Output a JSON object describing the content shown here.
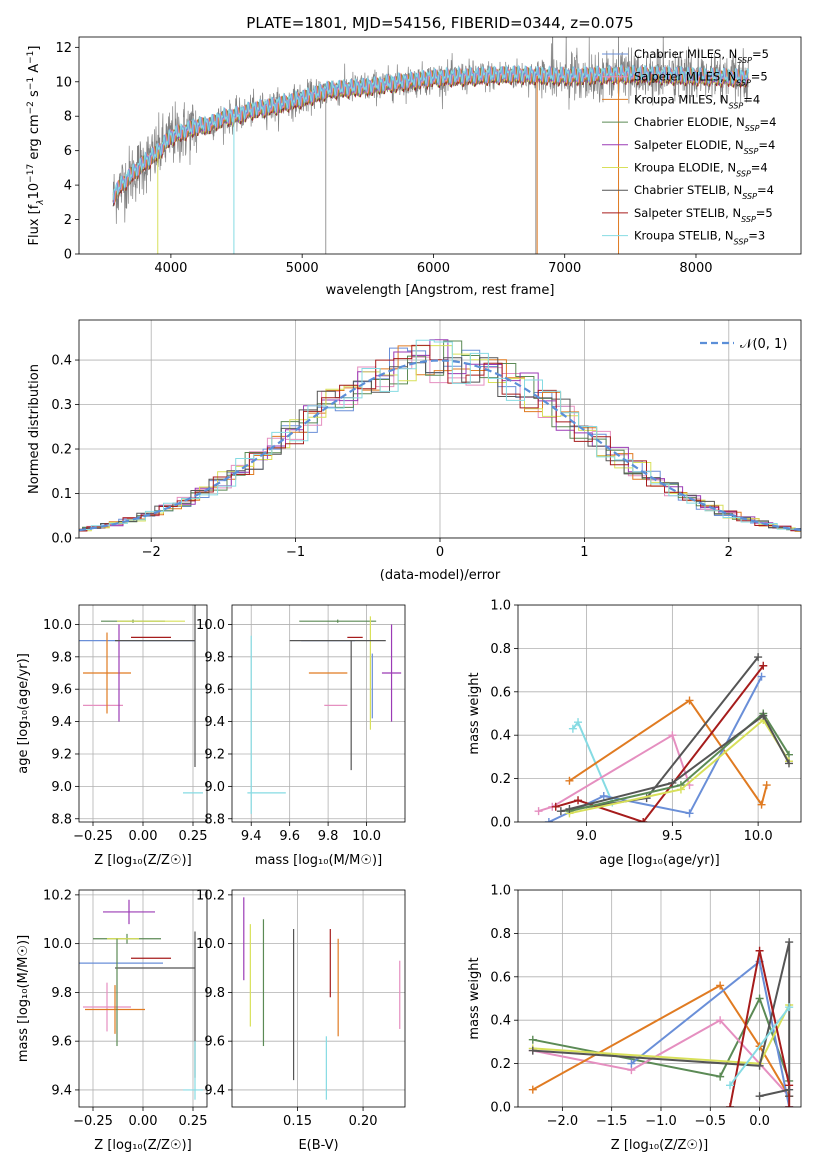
{
  "figure": {
    "title": "PLATE=1801, MJD=54156, FIBERID=0344, z=0.075"
  },
  "colors": {
    "chabrier_miles": "#6a8fd8",
    "salpeter_miles": "#e58fc0",
    "kroupa_miles": "#e07b22",
    "chabrier_elodie": "#5b8a55",
    "salpeter_elodie": "#9b3bb5",
    "kroupa_elodie": "#d8e05a",
    "chabrier_stelib": "#555555",
    "salpeter_stelib": "#a61c1c",
    "kroupa_stelib": "#86dbe3",
    "data": "#808080",
    "normal": "#5b8fd8"
  },
  "chart_data": [
    {
      "type": "line",
      "panel": "spectrum",
      "xlabel": "wavelength [Angstrom, rest frame]",
      "ylabel_parts": [
        "Flux [f",
        "λ",
        "10",
        "−17",
        " erg cm",
        "−2",
        " s",
        "−1",
        " A",
        "−1",
        "]"
      ],
      "xlim": [
        3300,
        8800
      ],
      "ylim": [
        0,
        12.6
      ],
      "xticks": [
        4000,
        5000,
        6000,
        7000,
        8000
      ],
      "yticks": [
        0,
        2,
        4,
        6,
        8,
        10,
        12
      ],
      "legend": [
        {
          "label": "Chabrier MILES, N",
          "sub": "SSP",
          "suffix": "=5",
          "color": "chabrier_miles"
        },
        {
          "label": "Salpeter MILES, N",
          "sub": "SSP",
          "suffix": "=5",
          "color": "salpeter_miles"
        },
        {
          "label": "Kroupa MILES, N",
          "sub": "SSP",
          "suffix": "=4",
          "color": "kroupa_miles"
        },
        {
          "label": "Chabrier ELODIE, N",
          "sub": "SSP",
          "suffix": "=4",
          "color": "chabrier_elodie"
        },
        {
          "label": "Salpeter ELODIE, N",
          "sub": "SSP",
          "suffix": "=4",
          "color": "salpeter_elodie"
        },
        {
          "label": "Kroupa ELODIE, N",
          "sub": "SSP",
          "suffix": "=4",
          "color": "kroupa_elodie"
        },
        {
          "label": "Chabrier STELIB, N",
          "sub": "SSP",
          "suffix": "=4",
          "color": "chabrier_stelib"
        },
        {
          "label": "Salpeter STELIB, N",
          "sub": "SSP",
          "suffix": "=5",
          "color": "salpeter_stelib"
        },
        {
          "label": "Kroupa STELIB, N",
          "sub": "SSP",
          "suffix": "=3",
          "color": "kroupa_stelib"
        }
      ],
      "continuum": {
        "x": [
          3560,
          3600,
          3700,
          3800,
          3900,
          4000,
          4100,
          4200,
          4300,
          4400,
          4500,
          4600,
          4800,
          5000,
          5200,
          5500,
          5800,
          6000,
          6300,
          6600,
          7000,
          7400,
          7600,
          8000,
          8400
        ],
        "y": [
          3.3,
          3.8,
          4.6,
          5.3,
          5.9,
          6.8,
          7.1,
          7.4,
          7.5,
          7.9,
          8.0,
          8.3,
          8.6,
          9.0,
          9.5,
          9.7,
          10.0,
          10.2,
          10.3,
          10.4,
          10.3,
          10.4,
          10.4,
          10.3,
          10.2
        ]
      }
    },
    {
      "type": "histogram",
      "panel": "residuals",
      "xlabel": "(data-model)/error",
      "ylabel": "Normed distribution",
      "xlim": [
        -2.5,
        2.5
      ],
      "ylim": [
        0,
        0.49
      ],
      "xticks": [
        -2,
        -1,
        0,
        1,
        2
      ],
      "yticks": [
        0.0,
        0.1,
        0.2,
        0.3,
        0.4
      ],
      "xtick_labels": [
        "−2",
        "−1",
        "0",
        "1",
        "2"
      ],
      "ytick_labels": [
        "0.0",
        "0.1",
        "0.2",
        "0.3",
        "0.4"
      ],
      "legend": [
        {
          "label": "𝒩(0, 1)",
          "color": "normal",
          "style": "dashed"
        }
      ],
      "bin_width": 0.125
    },
    {
      "type": "scatter",
      "panel": "age-vs-metallicity",
      "xlabel": "Z [log₁₀(Z/Z☉)]",
      "ylabel": "age  [log₁₀(age/yr)]",
      "xlim": [
        -0.32,
        0.32
      ],
      "ylim": [
        8.78,
        10.12
      ],
      "xticks": [
        -0.25,
        0,
        0.25
      ],
      "xtick_labels": [
        "−0.25",
        "0.00",
        "0.25"
      ],
      "yticks": [
        8.8,
        9.0,
        9.2,
        9.4,
        9.6,
        9.8,
        10.0
      ],
      "points": [
        {
          "color": "chabrier_miles",
          "x": -0.04,
          "xe": 0.3,
          "y": 9.9,
          "ye": 0.0
        },
        {
          "color": "salpeter_miles",
          "x": -0.2,
          "xe": 0.1,
          "y": 9.5,
          "ye": 0.0
        },
        {
          "color": "kroupa_miles",
          "x": -0.18,
          "xe": 0.12,
          "y": 9.7,
          "ye": 0.25
        },
        {
          "color": "chabrier_elodie",
          "x": -0.05,
          "xe": 0.16,
          "y": 10.02,
          "ye": 0.01
        },
        {
          "color": "kroupa_elodie",
          "x": 0.04,
          "xe": 0.17,
          "y": 10.02,
          "ye": 0.0
        },
        {
          "color": "salpeter_elodie",
          "x": -0.12,
          "xe": 0.0,
          "y": 9.7,
          "ye": 0.3
        },
        {
          "color": "chabrier_stelib",
          "x": 0.06,
          "xe": 0.2,
          "y": 9.9,
          "ye": 0.0
        },
        {
          "color": "salpeter_stelib",
          "x": 0.04,
          "xe": 0.1,
          "y": 9.92,
          "ye": 0.0
        },
        {
          "color": "chabrier_stelib",
          "x": 0.26,
          "xe": 0.0,
          "y": 9.62,
          "ye": 0.5
        },
        {
          "color": "kroupa_stelib",
          "x": 0.25,
          "xe": 0.05,
          "y": 8.96,
          "ye": 0.0
        }
      ]
    },
    {
      "type": "scatter",
      "panel": "age-vs-mass",
      "xlabel": "mass [log₁₀(M/M☉)]",
      "xlim": [
        9.3,
        10.2
      ],
      "ylim": [
        8.78,
        10.12
      ],
      "xticks": [
        9.4,
        9.6,
        9.8,
        10.0
      ],
      "yticks": [
        8.8,
        9.0,
        9.2,
        9.4,
        9.6,
        9.8,
        10.0
      ],
      "points": [
        {
          "color": "kroupa_stelib",
          "x": 9.48,
          "xe": 0.1,
          "y": 8.96,
          "ye": 0.0
        },
        {
          "color": "kroupa_stelib",
          "x": 9.4,
          "xe": 0.0,
          "y": 9.38,
          "ye": 0.55
        },
        {
          "color": "salpeter_miles",
          "x": 9.84,
          "xe": 0.06,
          "y": 9.5,
          "ye": 0.0
        },
        {
          "color": "kroupa_miles",
          "x": 9.8,
          "xe": 0.1,
          "y": 9.7,
          "ye": 0.0
        },
        {
          "color": "chabrier_miles",
          "x": 9.8,
          "xe": 0.14,
          "y": 9.9,
          "ye": 0.0
        },
        {
          "color": "chabrier_elodie",
          "x": 9.85,
          "xe": 0.2,
          "y": 10.02,
          "ye": 0.01
        },
        {
          "color": "kroupa_elodie",
          "x": 10.02,
          "xe": 0.0,
          "y": 9.7,
          "ye": 0.35
        },
        {
          "color": "salpeter_elodie",
          "x": 10.13,
          "xe": 0.05,
          "y": 9.7,
          "ye": 0.3
        },
        {
          "color": "chabrier_stelib",
          "x": 9.92,
          "xe": 0.0,
          "y": 9.5,
          "ye": 0.4
        },
        {
          "color": "salpeter_stelib",
          "x": 9.94,
          "xe": 0.04,
          "y": 9.92,
          "ye": 0.0
        },
        {
          "color": "chabrier_stelib",
          "x": 9.85,
          "xe": 0.25,
          "y": 9.9,
          "ye": 0.0
        },
        {
          "color": "chabrier_miles",
          "x": 10.03,
          "xe": 0.0,
          "y": 9.62,
          "ye": 0.2
        }
      ]
    },
    {
      "type": "line",
      "panel": "mass-weight-vs-age",
      "xlabel": "age  [log₁₀(age/yr)]",
      "ylabel": "mass weight",
      "xlim": [
        8.6,
        10.25
      ],
      "ylim": [
        0,
        1.0
      ],
      "xticks": [
        9.0,
        9.5,
        10.0
      ],
      "yticks": [
        0.0,
        0.2,
        0.4,
        0.6,
        0.8,
        1.0
      ],
      "series": [
        {
          "color": "kroupa_stelib",
          "x": [
            8.92,
            8.95,
            9.15
          ],
          "y": [
            0.43,
            0.46,
            0.09
          ]
        },
        {
          "color": "salpeter_miles",
          "x": [
            8.72,
            8.8,
            9.5,
            9.6
          ],
          "y": [
            0.05,
            0.07,
            0.4,
            0.17
          ]
        },
        {
          "color": "kroupa_miles",
          "x": [
            8.9,
            9.6,
            10.02,
            10.05
          ],
          "y": [
            0.19,
            0.56,
            0.08,
            0.17
          ]
        },
        {
          "color": "chabrier_miles",
          "x": [
            8.78,
            9.1,
            9.6,
            10.02
          ],
          "y": [
            0.0,
            0.12,
            0.04,
            0.67
          ]
        },
        {
          "color": "chabrier_stelib",
          "x": [
            8.85,
            9.35,
            10.0
          ],
          "y": [
            0.05,
            0.11,
            0.76
          ]
        },
        {
          "color": "salpeter_stelib",
          "x": [
            8.82,
            8.95,
            9.33,
            10.03
          ],
          "y": [
            0.07,
            0.1,
            0.0,
            0.72
          ]
        },
        {
          "color": "chabrier_elodie",
          "x": [
            8.9,
            9.55,
            10.03,
            10.18
          ],
          "y": [
            0.05,
            0.17,
            0.5,
            0.31
          ]
        },
        {
          "color": "kroupa_elodie",
          "x": [
            8.9,
            9.55,
            10.03,
            10.18
          ],
          "y": [
            0.04,
            0.15,
            0.47,
            0.28
          ]
        },
        {
          "color": "chabrier_stelib",
          "x": [
            8.9,
            9.5,
            10.03,
            10.18
          ],
          "y": [
            0.06,
            0.18,
            0.49,
            0.27
          ]
        }
      ]
    },
    {
      "type": "scatter",
      "panel": "mass-vs-metallicity",
      "xlabel": "Z [log₁₀(Z/Z☉)]",
      "ylabel": "mass [log₁₀(M/M☉)]",
      "xlim": [
        -0.32,
        0.32
      ],
      "ylim": [
        9.33,
        10.22
      ],
      "xticks": [
        -0.25,
        0,
        0.25
      ],
      "xtick_labels": [
        "−0.25",
        "0.00",
        "0.25"
      ],
      "yticks": [
        9.4,
        9.6,
        9.8,
        10.0,
        10.2
      ],
      "points": [
        {
          "color": "salpeter_elodie",
          "x": -0.07,
          "xe": 0.13,
          "y": 10.13,
          "ye": 0.05
        },
        {
          "color": "chabrier_elodie",
          "x": -0.08,
          "xe": 0.17,
          "y": 10.02,
          "ye": 0.02
        },
        {
          "color": "kroupa_elodie",
          "x": -0.1,
          "xe": 0.08,
          "y": 10.02,
          "ye": 0.0
        },
        {
          "color": "chabrier_miles",
          "x": -0.12,
          "xe": 0.22,
          "y": 9.92,
          "ye": 0.0
        },
        {
          "color": "salpeter_stelib",
          "x": 0.04,
          "xe": 0.1,
          "y": 9.94,
          "ye": 0.0
        },
        {
          "color": "chabrier_stelib",
          "x": 0.06,
          "xe": 0.2,
          "y": 9.9,
          "ye": 0.0
        },
        {
          "color": "salpeter_miles",
          "x": -0.18,
          "xe": 0.12,
          "y": 9.74,
          "ye": 0.1
        },
        {
          "color": "kroupa_miles",
          "x": -0.14,
          "xe": 0.15,
          "y": 9.73,
          "ye": 0.1
        },
        {
          "color": "chabrier_elodie",
          "x": -0.13,
          "xe": 0.0,
          "y": 9.8,
          "ye": 0.22
        },
        {
          "color": "chabrier_stelib",
          "x": 0.26,
          "xe": 0.0,
          "y": 9.75,
          "ye": 0.3
        },
        {
          "color": "kroupa_stelib",
          "x": 0.25,
          "xe": 0.05,
          "y": 9.4,
          "ye": 0.0
        },
        {
          "color": "kroupa_stelib",
          "x": 0.26,
          "xe": 0.0,
          "y": 9.48,
          "ye": 0.12
        }
      ]
    },
    {
      "type": "scatter",
      "panel": "mass-vs-extinction",
      "xlabel": "E(B-V)",
      "xlim": [
        0.1,
        0.232
      ],
      "ylim": [
        9.33,
        10.22
      ],
      "xticks": [
        0.15,
        0.2
      ],
      "xtick_labels": [
        "0.15",
        "0.20"
      ],
      "yticks": [
        9.4,
        9.6,
        9.8,
        10.0,
        10.2
      ],
      "points": [
        {
          "color": "salpeter_elodie",
          "x": 0.109,
          "xe": 0.0,
          "y": 10.02,
          "ye": 0.17
        },
        {
          "color": "kroupa_elodie",
          "x": 0.114,
          "xe": 0.0,
          "y": 9.87,
          "ye": 0.21
        },
        {
          "color": "chabrier_elodie",
          "x": 0.124,
          "xe": 0.0,
          "y": 9.84,
          "ye": 0.26
        },
        {
          "color": "chabrier_stelib",
          "x": 0.147,
          "xe": 0.0,
          "y": 9.75,
          "ye": 0.31
        },
        {
          "color": "kroupa_stelib",
          "x": 0.172,
          "xe": 0.0,
          "y": 9.49,
          "ye": 0.13
        },
        {
          "color": "salpeter_stelib",
          "x": 0.175,
          "xe": 0.0,
          "y": 9.92,
          "ye": 0.14
        },
        {
          "color": "kroupa_miles",
          "x": 0.181,
          "xe": 0.0,
          "y": 9.82,
          "ye": 0.2
        },
        {
          "color": "salpeter_miles",
          "x": 0.228,
          "xe": 0.0,
          "y": 9.79,
          "ye": 0.14
        }
      ]
    },
    {
      "type": "line",
      "panel": "mass-weight-vs-metallicity",
      "xlabel": "Z [log₁₀(Z/Z☉)]",
      "ylabel": "mass weight",
      "xlim": [
        -2.45,
        0.42
      ],
      "ylim": [
        0,
        1.0
      ],
      "xticks": [
        -2.0,
        -1.5,
        -1.0,
        -0.5,
        0.0
      ],
      "xtick_labels": [
        "−2.0",
        "−1.5",
        "−1.0",
        "−0.5",
        "0.0"
      ],
      "yticks": [
        0.0,
        0.2,
        0.4,
        0.6,
        0.8,
        1.0
      ],
      "series": [
        {
          "color": "chabrier_elodie",
          "x": [
            -2.3,
            -0.4,
            0.0,
            0.3
          ],
          "y": [
            0.31,
            0.14,
            0.5,
            0.12
          ]
        },
        {
          "color": "salpeter_miles",
          "x": [
            -2.3,
            -1.3,
            -0.4,
            0.3
          ],
          "y": [
            0.26,
            0.17,
            0.4,
            0.05
          ]
        },
        {
          "color": "kroupa_miles",
          "x": [
            -2.3,
            -0.4,
            0.0,
            0.3
          ],
          "y": [
            0.08,
            0.56,
            0.28,
            0.05
          ]
        },
        {
          "color": "chabrier_miles",
          "x": [
            -1.3,
            0.0,
            0.3
          ],
          "y": [
            0.2,
            0.67,
            0.0
          ]
        },
        {
          "color": "kroupa_elodie",
          "x": [
            -2.3,
            0.0,
            0.3
          ],
          "y": [
            0.27,
            0.2,
            0.47
          ]
        },
        {
          "color": "chabrier_stelib",
          "x": [
            -2.3,
            0.0,
            0.3,
            0.3
          ],
          "y": [
            0.26,
            0.19,
            0.76,
            0.05
          ]
        },
        {
          "color": "salpeter_stelib",
          "x": [
            -0.3,
            0.0,
            0.3,
            0.3
          ],
          "y": [
            0.0,
            0.72,
            0.1,
            0.0
          ]
        },
        {
          "color": "kroupa_stelib",
          "x": [
            -0.3,
            0.3
          ],
          "y": [
            0.1,
            0.46
          ]
        },
        {
          "color": "chabrier_stelib",
          "x": [
            0.0,
            0.3
          ],
          "y": [
            0.05,
            0.08
          ]
        }
      ]
    }
  ]
}
